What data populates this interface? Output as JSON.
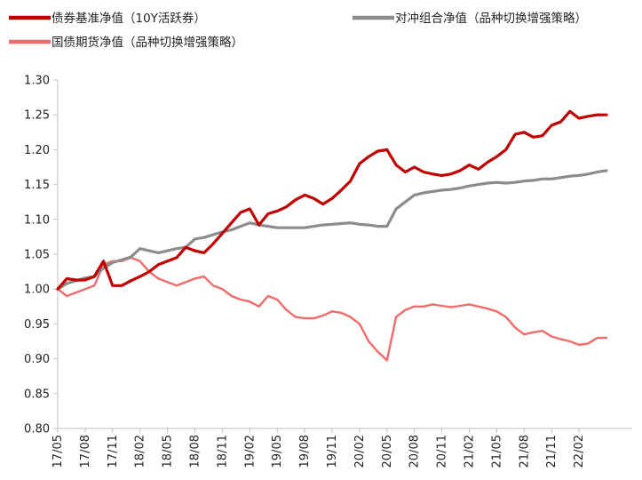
{
  "chart_data": {
    "type": "line",
    "title": "",
    "xlabel": "",
    "ylabel": "",
    "ylim": [
      0.8,
      1.3
    ],
    "yticks": [
      "1.30",
      "1.25",
      "1.20",
      "1.15",
      "1.10",
      "1.05",
      "1.00",
      "0.95",
      "0.90",
      "0.85",
      "0.80"
    ],
    "x_range": [
      "17/05",
      "22/05"
    ],
    "xticks": [
      "17/05",
      "17/08",
      "17/11",
      "18/02",
      "18/05",
      "18/08",
      "18/11",
      "19/02",
      "19/05",
      "19/08",
      "19/11",
      "20/02",
      "20/05",
      "20/08",
      "20/11",
      "21/02",
      "21/05",
      "21/08",
      "21/11",
      "22/02"
    ],
    "grid": false,
    "legend_position": "top",
    "series": [
      {
        "name": "债券基准净值（10Y活跃券）",
        "color": "#c00000",
        "x": [
          "17/05",
          "17/06",
          "17/07",
          "17/08",
          "17/09",
          "17/10",
          "17/11",
          "17/12",
          "18/01",
          "18/02",
          "18/03",
          "18/04",
          "18/05",
          "18/06",
          "18/07",
          "18/08",
          "18/09",
          "18/10",
          "18/11",
          "18/12",
          "19/01",
          "19/02",
          "19/03",
          "19/04",
          "19/05",
          "19/06",
          "19/07",
          "19/08",
          "19/09",
          "19/10",
          "19/11",
          "19/12",
          "20/01",
          "20/02",
          "20/03",
          "20/04",
          "20/05",
          "20/06",
          "20/07",
          "20/08",
          "20/09",
          "20/10",
          "20/11",
          "20/12",
          "21/01",
          "21/02",
          "21/03",
          "21/04",
          "21/05",
          "21/06",
          "21/07",
          "21/08",
          "21/09",
          "21/10",
          "21/11",
          "21/12",
          "22/01",
          "22/02",
          "22/03",
          "22/04",
          "22/05"
        ],
        "values": [
          1.0,
          1.015,
          1.013,
          1.013,
          1.018,
          1.04,
          1.005,
          1.005,
          1.012,
          1.018,
          1.025,
          1.035,
          1.04,
          1.045,
          1.06,
          1.055,
          1.052,
          1.065,
          1.08,
          1.095,
          1.11,
          1.115,
          1.092,
          1.108,
          1.112,
          1.118,
          1.128,
          1.135,
          1.13,
          1.122,
          1.13,
          1.142,
          1.155,
          1.18,
          1.19,
          1.198,
          1.2,
          1.178,
          1.168,
          1.175,
          1.168,
          1.165,
          1.163,
          1.165,
          1.17,
          1.178,
          1.172,
          1.182,
          1.19,
          1.2,
          1.222,
          1.225,
          1.218,
          1.22,
          1.235,
          1.24,
          1.255,
          1.245,
          1.248,
          1.25,
          1.25
        ]
      },
      {
        "name": "对冲组合净值（品种切换增强策略）",
        "color": "#8c8c8c",
        "x": [
          "17/05",
          "17/06",
          "17/07",
          "17/08",
          "17/09",
          "17/10",
          "17/11",
          "17/12",
          "18/01",
          "18/02",
          "18/03",
          "18/04",
          "18/05",
          "18/06",
          "18/07",
          "18/08",
          "18/09",
          "18/10",
          "18/11",
          "18/12",
          "19/01",
          "19/02",
          "19/03",
          "19/04",
          "19/05",
          "19/06",
          "19/07",
          "19/08",
          "19/09",
          "19/10",
          "19/11",
          "19/12",
          "20/01",
          "20/02",
          "20/03",
          "20/04",
          "20/05",
          "20/06",
          "20/07",
          "20/08",
          "20/09",
          "20/10",
          "20/11",
          "20/12",
          "21/01",
          "21/02",
          "21/03",
          "21/04",
          "21/05",
          "21/06",
          "21/07",
          "21/08",
          "21/09",
          "21/10",
          "21/11",
          "21/12",
          "22/01",
          "22/02",
          "22/03",
          "22/04",
          "22/05"
        ],
        "values": [
          1.0,
          1.008,
          1.012,
          1.016,
          1.018,
          1.03,
          1.038,
          1.042,
          1.046,
          1.058,
          1.055,
          1.052,
          1.055,
          1.058,
          1.06,
          1.072,
          1.074,
          1.078,
          1.082,
          1.085,
          1.09,
          1.095,
          1.092,
          1.09,
          1.088,
          1.088,
          1.088,
          1.088,
          1.09,
          1.092,
          1.093,
          1.094,
          1.095,
          1.093,
          1.092,
          1.09,
          1.09,
          1.115,
          1.125,
          1.135,
          1.138,
          1.14,
          1.142,
          1.143,
          1.145,
          1.148,
          1.15,
          1.152,
          1.153,
          1.152,
          1.153,
          1.155,
          1.156,
          1.158,
          1.158,
          1.16,
          1.162,
          1.163,
          1.165,
          1.168,
          1.17
        ]
      },
      {
        "name": "国债期货净值（品种切换增强策略）",
        "color": "#f26b6b",
        "x": [
          "17/05",
          "17/06",
          "17/07",
          "17/08",
          "17/09",
          "17/10",
          "17/11",
          "17/12",
          "18/01",
          "18/02",
          "18/03",
          "18/04",
          "18/05",
          "18/06",
          "18/07",
          "18/08",
          "18/09",
          "18/10",
          "18/11",
          "18/12",
          "19/01",
          "19/02",
          "19/03",
          "19/04",
          "19/05",
          "19/06",
          "19/07",
          "19/08",
          "19/09",
          "19/10",
          "19/11",
          "19/12",
          "20/01",
          "20/02",
          "20/03",
          "20/04",
          "20/05",
          "20/06",
          "20/07",
          "20/08",
          "20/09",
          "20/10",
          "20/11",
          "20/12",
          "21/01",
          "21/02",
          "21/03",
          "21/04",
          "21/05",
          "21/06",
          "21/07",
          "21/08",
          "21/09",
          "21/10",
          "21/11",
          "21/12",
          "22/01",
          "22/02",
          "22/03",
          "22/04",
          "22/05"
        ],
        "values": [
          1.0,
          0.99,
          0.995,
          1.0,
          1.005,
          1.035,
          1.04,
          1.04,
          1.045,
          1.04,
          1.025,
          1.015,
          1.01,
          1.005,
          1.01,
          1.015,
          1.018,
          1.005,
          1.0,
          0.99,
          0.985,
          0.982,
          0.975,
          0.99,
          0.985,
          0.97,
          0.96,
          0.958,
          0.958,
          0.962,
          0.968,
          0.966,
          0.96,
          0.95,
          0.925,
          0.91,
          0.898,
          0.96,
          0.97,
          0.975,
          0.975,
          0.978,
          0.976,
          0.974,
          0.976,
          0.978,
          0.975,
          0.972,
          0.968,
          0.96,
          0.945,
          0.935,
          0.938,
          0.94,
          0.932,
          0.928,
          0.925,
          0.92,
          0.922,
          0.93,
          0.93
        ]
      }
    ]
  }
}
